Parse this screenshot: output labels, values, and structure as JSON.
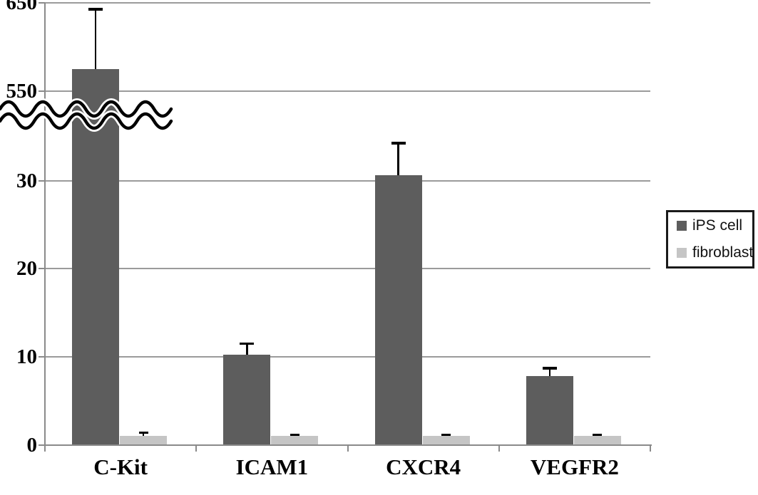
{
  "chart_data": {
    "type": "bar",
    "title": "",
    "xlabel": "",
    "ylabel": "",
    "categories": [
      "C-Kit",
      "ICAM1",
      "CXCR4",
      "VEGFR2"
    ],
    "series": [
      {
        "name": "iPS cell",
        "color": "#5d5d5d",
        "values": [
          575,
          10.2,
          30.6,
          7.8
        ],
        "errors_plus": [
          68,
          1.3,
          3.7,
          0.9
        ]
      },
      {
        "name": "fibroblast",
        "color": "#c5c5c5",
        "values": [
          1.0,
          1.0,
          1.0,
          1.0
        ],
        "errors_plus": [
          0.4,
          0.15,
          0.15,
          0.15
        ]
      }
    ],
    "y_axis": {
      "lower_ticks": [
        0,
        10,
        20,
        30
      ],
      "upper_ticks": [
        550,
        650
      ],
      "axis_break": true,
      "lower_visible_max": 35,
      "upper_min": 550,
      "upper_max": 650
    },
    "grid": true,
    "legend_position": "right"
  },
  "legend": {
    "items": [
      {
        "label": "iPS cell",
        "color": "#5d5d5d"
      },
      {
        "label": "fibroblast",
        "color": "#c5c5c5"
      }
    ]
  },
  "style": {
    "gridline_color": "#9b9b9b",
    "axis_color": "#8a8a8a",
    "error_color": "#000000",
    "background": "#ffffff"
  }
}
